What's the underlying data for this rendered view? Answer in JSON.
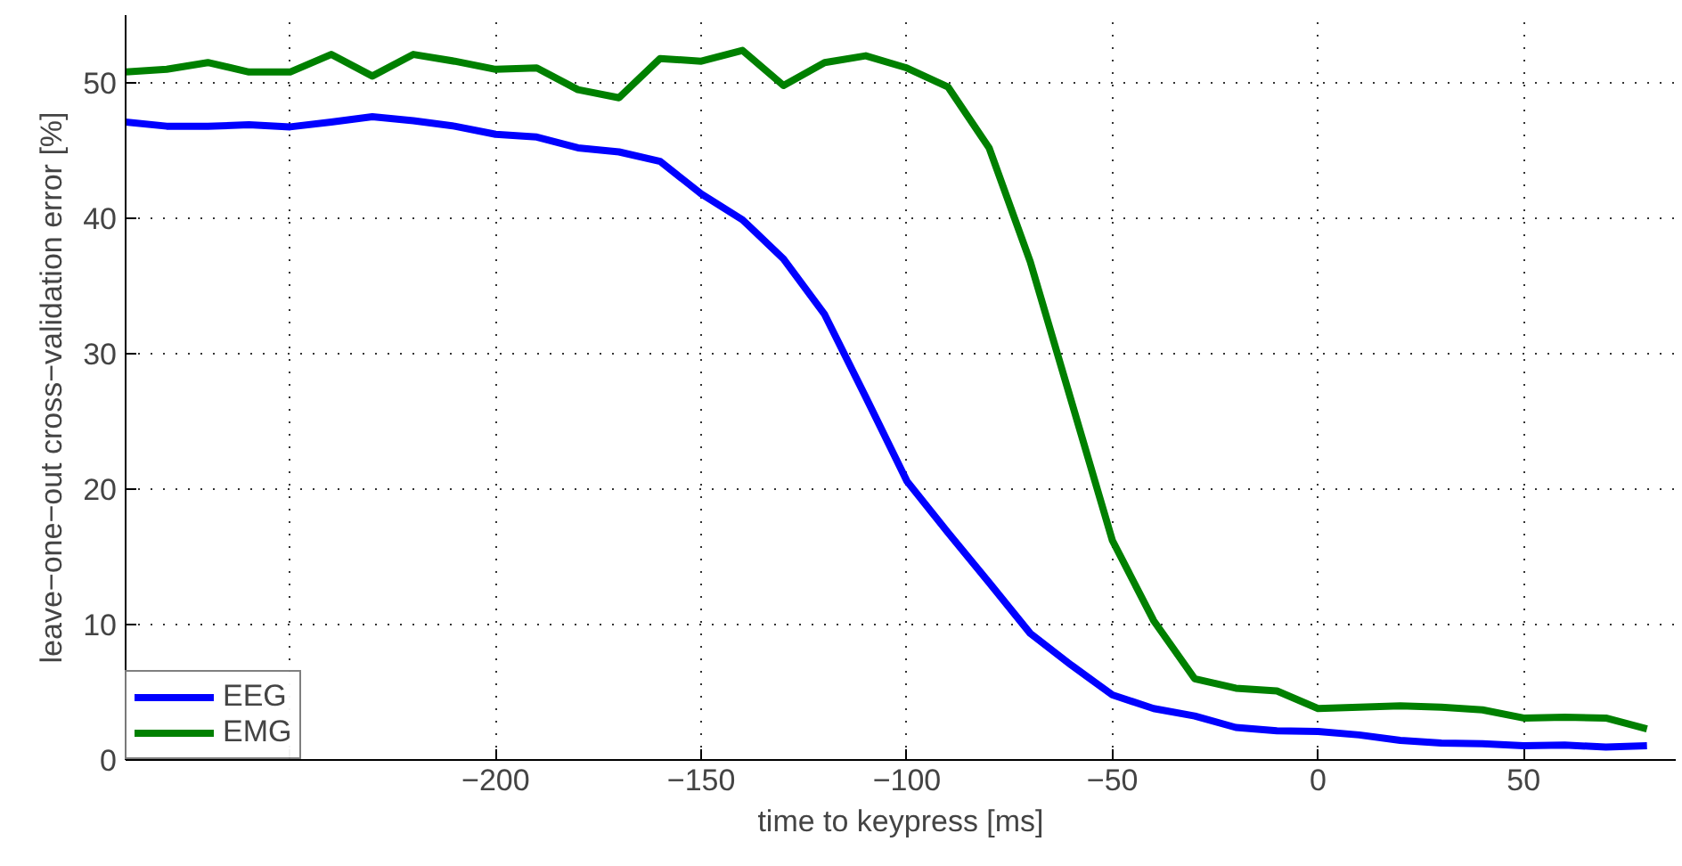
{
  "chart_data": {
    "type": "line",
    "xlabel": "time to keypress [ms]",
    "ylabel": "leave−one−out cross−validation error [%]",
    "x": [
      -290,
      -280,
      -270,
      -260,
      -250,
      -240,
      -230,
      -220,
      -210,
      -200,
      -190,
      -180,
      -170,
      -160,
      -150,
      -140,
      -130,
      -120,
      -110,
      -100,
      -90,
      -80,
      -70,
      -60,
      -50,
      -40,
      -30,
      -20,
      -10,
      0,
      10,
      20,
      30,
      40,
      50,
      60,
      70,
      80
    ],
    "series": [
      {
        "name": "EEG",
        "color": "#0000ff",
        "values": [
          47.1,
          46.8,
          46.8,
          46.9,
          46.75,
          47.1,
          47.5,
          47.2,
          46.8,
          46.2,
          46.0,
          45.2,
          44.9,
          44.2,
          41.8,
          39.9,
          37.0,
          32.9,
          26.8,
          20.6,
          16.8,
          13.1,
          9.35,
          7.0,
          4.8,
          3.8,
          3.25,
          2.4,
          2.15,
          2.1,
          1.85,
          1.45,
          1.25,
          1.2,
          1.05,
          1.1,
          0.95,
          1.05
        ]
      },
      {
        "name": "EMG",
        "color": "#008000",
        "values": [
          50.8,
          51.0,
          51.5,
          50.8,
          50.8,
          52.1,
          50.5,
          52.1,
          51.6,
          51.0,
          51.1,
          49.5,
          48.9,
          51.8,
          51.6,
          52.4,
          49.8,
          51.5,
          52.0,
          51.1,
          49.7,
          45.2,
          36.8,
          26.5,
          16.2,
          10.3,
          6.0,
          5.3,
          5.1,
          3.8,
          3.9,
          4.0,
          3.9,
          3.7,
          3.1,
          3.15,
          3.1,
          2.3
        ]
      }
    ],
    "xlim": [
      -290,
      87
    ],
    "ylim": [
      0,
      55
    ],
    "xticks": [
      {
        "value": -250,
        "label": null
      },
      -200,
      -150,
      -100,
      -50,
      0,
      50
    ],
    "yticks": [
      0,
      10,
      20,
      30,
      40,
      50
    ],
    "grid": true,
    "legend": "bottom left",
    "line_style": "solid"
  }
}
